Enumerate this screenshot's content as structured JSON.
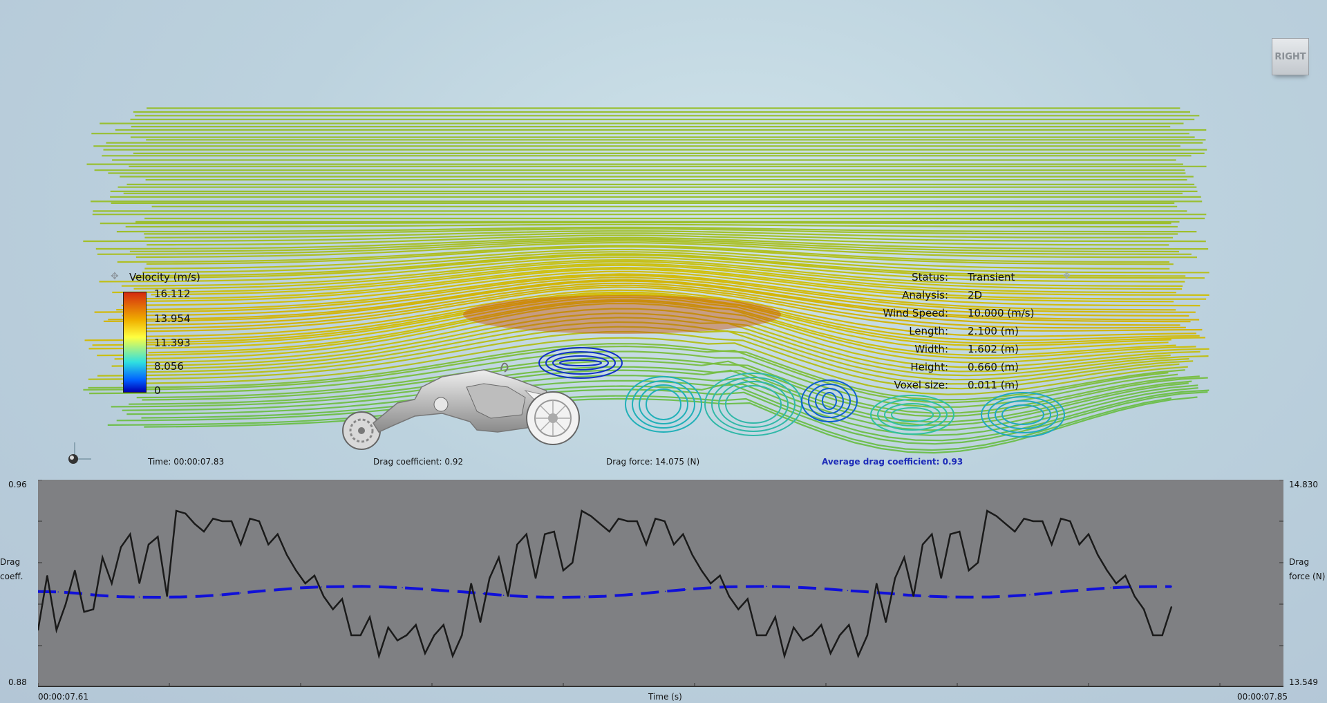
{
  "view_cube": {
    "label": "RIGHT"
  },
  "legend": {
    "title": "Velocity (m/s)",
    "ticks": [
      "16.112",
      "13.954",
      "11.393",
      "8.056",
      "0"
    ]
  },
  "info": {
    "rows": [
      {
        "label": "Status:",
        "value": "Transient"
      },
      {
        "label": "Analysis:",
        "value": "2D"
      },
      {
        "label": "Wind Speed:",
        "value": "10.000 (m/s)"
      },
      {
        "label": "Length:",
        "value": "2.100 (m)"
      },
      {
        "label": "Width:",
        "value": "1.602 (m)"
      },
      {
        "label": "Height:",
        "value": "0.660 (m)"
      },
      {
        "label": "Voxel size:",
        "value": "0.011 (m)"
      }
    ]
  },
  "status_bar": {
    "time": "Time: 00:00:07.83",
    "drag_coefficient": "Drag coefficient: 0.92",
    "drag_force": "Drag force: 14.075 (N)",
    "average_drag": "Average drag coefficient: 0.93"
  },
  "colors": {
    "drag_series": "#1a1a1a",
    "force_series": "#1010d8",
    "chart_bg": "#7f8083",
    "average_text": "#1d2bb8"
  },
  "chart_data": {
    "type": "line",
    "title": "",
    "xlabel": "Time (s)",
    "x_start_label": "00:00:07.61",
    "x_end_label": "00:00:07.85",
    "ylabel_left": [
      "Drag",
      "coeff."
    ],
    "ylabel_right": [
      "Drag",
      "force (N)"
    ],
    "ylim_left": [
      0.88,
      0.96
    ],
    "ylim_right": [
      13.549,
      14.83
    ],
    "ylim_left_labels": [
      "0.96",
      "0.88"
    ],
    "ylim_right_labels": [
      "14.830",
      "13.549"
    ],
    "grid": false,
    "series": [
      {
        "axis": "left",
        "style": "solid",
        "values": [
          0.902,
          0.923,
          0.902,
          0.912,
          0.925,
          0.909,
          0.91,
          0.93,
          0.92,
          0.934,
          0.939,
          0.92,
          0.935,
          0.938,
          0.915,
          0.948,
          0.947,
          0.943,
          0.94,
          0.945,
          0.944,
          0.944,
          0.935,
          0.945,
          0.944,
          0.935,
          0.939,
          0.931,
          0.925,
          0.92,
          0.923,
          0.915,
          0.91,
          0.914,
          0.9,
          0.9,
          0.907,
          0.892,
          0.903,
          0.898,
          0.9,
          0.904,
          0.893,
          0.9,
          0.904,
          0.892,
          0.9,
          0.92,
          0.905,
          0.922,
          0.93,
          0.915,
          0.935,
          0.939,
          0.922,
          0.939,
          0.94,
          0.925,
          0.928,
          0.948,
          0.946,
          0.943,
          0.94,
          0.945,
          0.944,
          0.944,
          0.935,
          0.945,
          0.944,
          0.935,
          0.939,
          0.931,
          0.925,
          0.92,
          0.923,
          0.915,
          0.91,
          0.914,
          0.9,
          0.9,
          0.907,
          0.892,
          0.903,
          0.898,
          0.9,
          0.904,
          0.893,
          0.9,
          0.904,
          0.892,
          0.9,
          0.92,
          0.905,
          0.922,
          0.93,
          0.915,
          0.935,
          0.939,
          0.922,
          0.939,
          0.94,
          0.925,
          0.928,
          0.948,
          0.946,
          0.943,
          0.94,
          0.945,
          0.944,
          0.944,
          0.935,
          0.945,
          0.944,
          0.935,
          0.939,
          0.931,
          0.925,
          0.92,
          0.923,
          0.915,
          0.91,
          0.9,
          0.9,
          0.911
        ]
      },
      {
        "axis": "right",
        "style": "dashed",
        "values": [
          14.139,
          14.137,
          14.128,
          14.115,
          14.108,
          14.105,
          14.104,
          14.106,
          14.11,
          14.118,
          14.13,
          14.142,
          14.152,
          14.162,
          14.168,
          14.17,
          14.171,
          14.168,
          14.163,
          14.155,
          14.145,
          14.137,
          14.127,
          14.116,
          14.109,
          14.105,
          14.104,
          14.106,
          14.11,
          14.118,
          14.129,
          14.141,
          14.152,
          14.161,
          14.168,
          14.17,
          14.171,
          14.168,
          14.162,
          14.155,
          14.145,
          14.137,
          14.128,
          14.117,
          14.11,
          14.106,
          14.105,
          14.106,
          14.111,
          14.119,
          14.131,
          14.143,
          14.153,
          14.162,
          14.168,
          14.17,
          14.17
        ]
      }
    ]
  }
}
